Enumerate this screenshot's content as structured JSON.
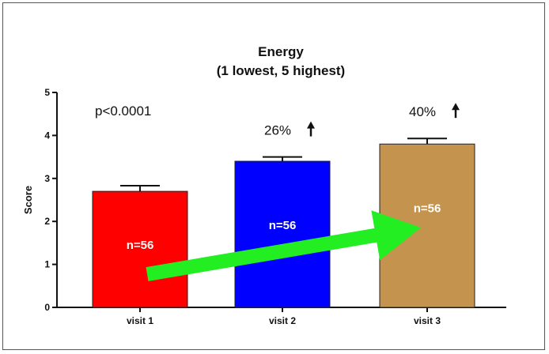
{
  "chart_data": {
    "type": "bar",
    "title": "Energy",
    "subtitle": "(1 lowest, 5 highest)",
    "xlabel": "",
    "ylabel": "Score",
    "ylim": [
      0,
      5
    ],
    "yticks": [
      "0",
      "1",
      "2",
      "3",
      "4",
      "5"
    ],
    "categories": [
      "visit 1",
      "visit 2",
      "visit 3"
    ],
    "values": [
      2.7,
      3.4,
      3.8
    ],
    "error": [
      0.13,
      0.1,
      0.13
    ],
    "bar_colors": [
      "#ff0000",
      "#0000ff",
      "#c4944f"
    ],
    "bar_labels": [
      "n=56",
      "n=56",
      "n=56"
    ],
    "pvalue": "p<0.0001",
    "increase_labels": [
      "",
      "26%",
      "40%"
    ],
    "arrow_color": "#22ee22",
    "grid": false,
    "legend": "none"
  }
}
